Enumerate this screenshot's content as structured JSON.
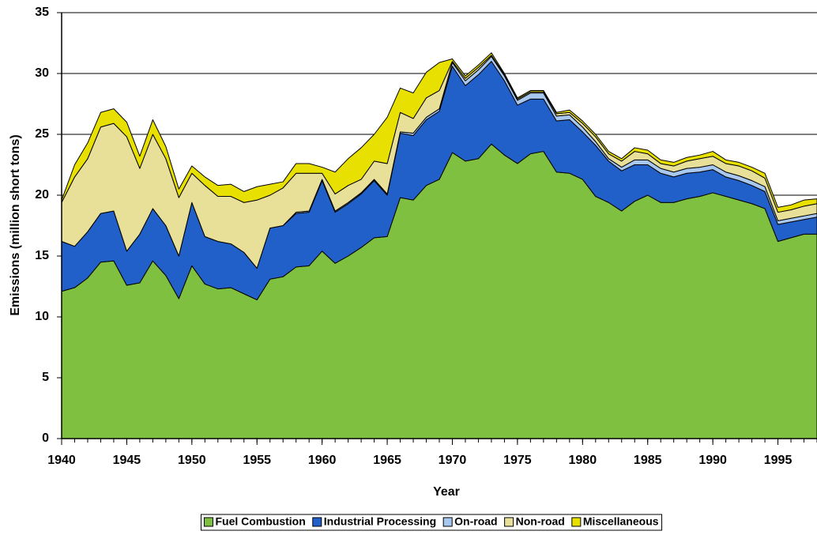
{
  "chart_data": {
    "type": "stacked-area",
    "x_label": "Year",
    "y_label": "Emissions (million short tons)",
    "x": [
      1940,
      1941,
      1942,
      1943,
      1944,
      1945,
      1946,
      1947,
      1948,
      1949,
      1950,
      1951,
      1952,
      1953,
      1954,
      1955,
      1956,
      1957,
      1958,
      1959,
      1960,
      1961,
      1962,
      1963,
      1964,
      1965,
      1966,
      1967,
      1968,
      1969,
      1970,
      1971,
      1972,
      1973,
      1974,
      1975,
      1976,
      1977,
      1978,
      1979,
      1980,
      1981,
      1982,
      1983,
      1984,
      1985,
      1986,
      1987,
      1988,
      1989,
      1990,
      1991,
      1992,
      1993,
      1994,
      1995,
      1996,
      1997,
      1998
    ],
    "series": [
      {
        "name": "Fuel Combustion",
        "color": "#80c040",
        "values": [
          12.1,
          12.4,
          13.2,
          14.5,
          14.6,
          12.6,
          12.8,
          14.6,
          13.4,
          11.5,
          14.2,
          12.7,
          12.3,
          12.4,
          11.9,
          11.4,
          13.1,
          13.3,
          14.1,
          14.2,
          15.4,
          14.4,
          15.0,
          15.7,
          16.5,
          16.6,
          19.8,
          19.6,
          20.8,
          21.3,
          23.5,
          22.8,
          23.0,
          24.2,
          23.3,
          22.6,
          23.4,
          23.6,
          21.9,
          21.8,
          21.3,
          19.9,
          19.4,
          18.7,
          19.5,
          20.0,
          19.4,
          19.4,
          19.7,
          19.9,
          20.2,
          19.9,
          19.6,
          19.3,
          18.9,
          16.2,
          16.5,
          16.8,
          16.8
        ]
      },
      {
        "name": "Industrial Processing",
        "color": "#2060c8",
        "values": [
          4.1,
          3.4,
          3.8,
          4.0,
          4.1,
          2.8,
          4.0,
          4.3,
          4.1,
          3.5,
          5.2,
          3.9,
          3.9,
          3.6,
          3.4,
          2.6,
          4.2,
          4.2,
          4.4,
          4.4,
          5.8,
          4.2,
          4.3,
          4.4,
          4.7,
          3.4,
          5.3,
          5.3,
          5.4,
          5.6,
          7.1,
          6.2,
          6.9,
          6.8,
          6.1,
          4.8,
          4.5,
          4.3,
          4.2,
          4.4,
          3.9,
          4.2,
          3.4,
          3.3,
          3.0,
          2.5,
          2.4,
          2.1,
          2.1,
          2.0,
          1.9,
          1.6,
          1.6,
          1.5,
          1.4,
          1.4,
          1.3,
          1.2,
          1.4
        ]
      },
      {
        "name": "On-road",
        "color": "#a8c8f0",
        "values": [
          0,
          0,
          0,
          0,
          0,
          0,
          0,
          0,
          0,
          0,
          0,
          0,
          0,
          0,
          0,
          0,
          0,
          0,
          0.1,
          0.1,
          0.1,
          0.1,
          0.1,
          0.1,
          0.1,
          0.1,
          0.1,
          0.2,
          0.2,
          0.2,
          0.3,
          0.4,
          0.4,
          0.4,
          0.4,
          0.4,
          0.5,
          0.5,
          0.4,
          0.4,
          0.4,
          0.3,
          0.2,
          0.3,
          0.4,
          0.4,
          0.4,
          0.4,
          0.4,
          0.4,
          0.4,
          0.4,
          0.4,
          0.4,
          0.4,
          0.3,
          0.3,
          0.3,
          0.3
        ]
      },
      {
        "name": "Non-road",
        "color": "#e8e098",
        "values": [
          3.2,
          5.7,
          6.0,
          7.1,
          7.2,
          9.4,
          5.4,
          6.1,
          5.5,
          4.8,
          2.4,
          4.2,
          3.7,
          3.9,
          4.1,
          5.6,
          2.7,
          3.1,
          3.2,
          3.1,
          0.5,
          1.4,
          1.4,
          1.1,
          1.5,
          2.5,
          1.6,
          1.2,
          1.6,
          1.5,
          0.1,
          0.2,
          0.2,
          0.1,
          0.1,
          0.1,
          0.1,
          0.1,
          0.2,
          0.2,
          0.3,
          0.4,
          0.4,
          0.5,
          0.7,
          0.5,
          0.4,
          0.5,
          0.6,
          0.7,
          0.7,
          0.7,
          0.8,
          0.8,
          0.7,
          0.7,
          0.7,
          0.8,
          0.8
        ]
      },
      {
        "name": "Miscellaneous",
        "color": "#e8e000",
        "values": [
          0.2,
          1.0,
          1.3,
          1.2,
          1.2,
          1.2,
          1.0,
          1.2,
          1.0,
          0.7,
          0.6,
          0.7,
          0.9,
          1.0,
          0.9,
          1.1,
          0.9,
          0.5,
          0.8,
          0.8,
          0.5,
          1.8,
          2.2,
          2.6,
          2.2,
          3.8,
          2.0,
          2.1,
          2.1,
          2.3,
          0.2,
          0.2,
          0.2,
          0.2,
          0.1,
          0.1,
          0.1,
          0.1,
          0.1,
          0.2,
          0.2,
          0.2,
          0.2,
          0.2,
          0.3,
          0.3,
          0.3,
          0.3,
          0.3,
          0.3,
          0.4,
          0.3,
          0.3,
          0.3,
          0.4,
          0.4,
          0.4,
          0.5,
          0.4
        ]
      }
    ],
    "xlim": [
      1940,
      1998
    ],
    "xticks": [
      1940,
      1945,
      1950,
      1955,
      1960,
      1965,
      1970,
      1975,
      1980,
      1985,
      1990,
      1995
    ],
    "ylim": [
      0,
      35
    ],
    "yticks": [
      0,
      5,
      10,
      15,
      20,
      25,
      30,
      35
    ],
    "grid": true,
    "legend": "bottom"
  }
}
